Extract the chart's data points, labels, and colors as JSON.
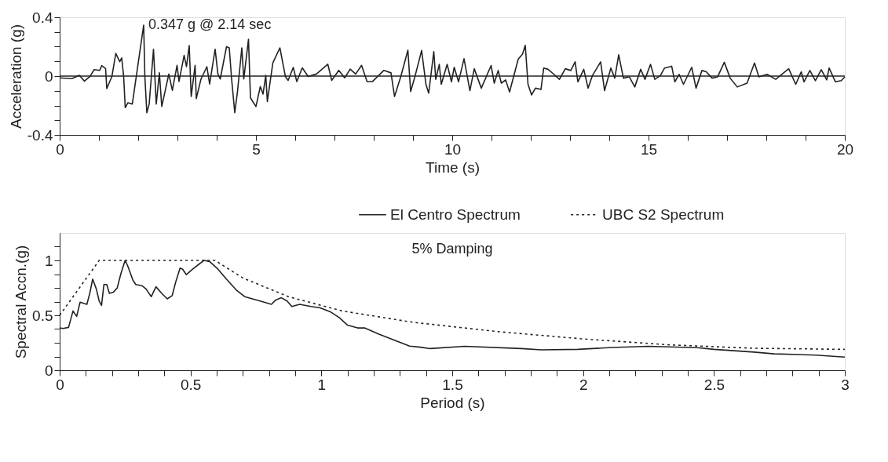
{
  "chart_data": [
    {
      "type": "line",
      "xlabel": "Time (s)",
      "ylabel": "Acceleration (g)",
      "xlim": [
        0,
        20
      ],
      "ylim": [
        -0.4,
        0.4
      ],
      "xticks": [
        0,
        {
          "value": 1,
          "label": null
        },
        {
          "value": 2,
          "label": null
        },
        {
          "value": 3,
          "label": null
        },
        {
          "value": 4,
          "label": null
        },
        5,
        {
          "value": 6,
          "label": null
        },
        {
          "value": 7,
          "label": null
        },
        {
          "value": 8,
          "label": null
        },
        {
          "value": 9,
          "label": null
        },
        10,
        {
          "value": 11,
          "label": null
        },
        {
          "value": 12,
          "label": null
        },
        {
          "value": 13,
          "label": null
        },
        {
          "value": 14,
          "label": null
        },
        15,
        {
          "value": 16,
          "label": null
        },
        {
          "value": 17,
          "label": null
        },
        {
          "value": 18,
          "label": null
        },
        {
          "value": 19,
          "label": null
        },
        20
      ],
      "yticks": [
        -0.4,
        {
          "value": -0.3,
          "label": null
        },
        {
          "value": -0.2,
          "label": null
        },
        {
          "value": -0.1,
          "label": null
        },
        0,
        {
          "value": 0.1,
          "label": null
        },
        {
          "value": 0.2,
          "label": null
        },
        {
          "value": 0.3,
          "label": null
        },
        0.4
      ],
      "grid": false,
      "legend": false,
      "marker": "none",
      "ref_lines": [
        {
          "axis": "y",
          "value": 0,
          "label": null,
          "color": "#222222"
        }
      ],
      "annotations": [
        {
          "text": "0.347 g @ 2.14 sec",
          "x": 2.14,
          "y": 0.347
        }
      ],
      "series": [
        {
          "color": "#222222",
          "line_style": "solid",
          "x": [
            0,
            0.31,
            0.5,
            0.63,
            0.77,
            0.88,
            1.02,
            1.07,
            1.17,
            1.2,
            1.33,
            1.43,
            1.53,
            1.58,
            1.63,
            1.67,
            1.74,
            1.85,
            2.14,
            2.17,
            2.22,
            2.28,
            2.39,
            2.46,
            2.54,
            2.6,
            2.78,
            2.87,
            2.99,
            3.04,
            3.17,
            3.23,
            3.3,
            3.35,
            3.45,
            3.48,
            3.6,
            3.75,
            3.82,
            3.96,
            4.03,
            4.09,
            4.25,
            4.32,
            4.38,
            4.46,
            4.53,
            4.64,
            4.69,
            4.81,
            4.86,
            5.0,
            5.11,
            5.18,
            5.25,
            5.29,
            5.43,
            5.61,
            5.75,
            5.82,
            5.95,
            6.04,
            6.18,
            6.33,
            6.54,
            6.83,
            6.93,
            7.11,
            7.26,
            7.4,
            7.54,
            7.69,
            7.83,
            7.97,
            8.26,
            8.44,
            8.53,
            8.69,
            8.87,
            8.94,
            9.05,
            9.22,
            9.33,
            9.4,
            9.53,
            9.58,
            9.67,
            9.72,
            9.87,
            9.98,
            10.05,
            10.16,
            10.3,
            10.45,
            10.56,
            10.74,
            10.99,
            11.07,
            11.17,
            11.25,
            11.36,
            11.46,
            11.68,
            11.79,
            11.86,
            11.93,
            12.02,
            12.12,
            12.26,
            12.33,
            12.44,
            12.59,
            12.73,
            12.88,
            13.02,
            13.13,
            13.2,
            13.35,
            13.46,
            13.57,
            13.78,
            13.88,
            14.04,
            14.14,
            14.24,
            14.36,
            14.51,
            14.65,
            14.8,
            14.91,
            15.05,
            15.16,
            15.3,
            15.41,
            15.59,
            15.67,
            15.78,
            15.89,
            16.1,
            16.21,
            16.36,
            16.47,
            16.62,
            16.76,
            16.93,
            17.08,
            17.26,
            17.51,
            17.7,
            17.81,
            18.02,
            18.24,
            18.57,
            18.75,
            18.89,
            18.96,
            19.11,
            19.25,
            19.4,
            19.54,
            19.6,
            19.76,
            19.91,
            20
          ],
          "values": [
            -0.012,
            -0.017,
            0.005,
            -0.034,
            -0.003,
            0.044,
            0.039,
            0.071,
            0.051,
            -0.085,
            -0.003,
            0.154,
            0.098,
            0.124,
            -0.003,
            -0.215,
            -0.181,
            -0.19,
            0.347,
            -0.003,
            -0.249,
            -0.19,
            0.183,
            -0.19,
            0.022,
            -0.207,
            0.014,
            -0.097,
            0.073,
            -0.037,
            0.141,
            0.064,
            0.208,
            -0.139,
            0.073,
            -0.153,
            -0.02,
            0.064,
            -0.054,
            0.183,
            0.014,
            -0.02,
            0.2,
            0.192,
            -0.02,
            -0.249,
            -0.105,
            0.192,
            -0.02,
            0.251,
            -0.148,
            -0.207,
            -0.071,
            -0.122,
            0.005,
            -0.173,
            0.09,
            0.192,
            -0.003,
            -0.029,
            0.059,
            -0.037,
            0.056,
            -0.003,
            0.014,
            0.081,
            -0.029,
            0.039,
            -0.012,
            0.047,
            0.014,
            0.073,
            -0.037,
            -0.037,
            0.039,
            0.022,
            -0.139,
            -0.003,
            0.176,
            -0.105,
            -0.003,
            0.174,
            -0.056,
            -0.116,
            0.166,
            -0.022,
            0.08,
            -0.056,
            0.08,
            -0.039,
            0.06,
            -0.039,
            0.118,
            -0.099,
            0.05,
            -0.082,
            0.072,
            -0.048,
            0.038,
            -0.048,
            -0.026,
            -0.108,
            0.115,
            0.149,
            0.209,
            -0.056,
            -0.128,
            -0.082,
            -0.091,
            0.055,
            0.046,
            0.012,
            -0.022,
            0.05,
            0.038,
            0.097,
            -0.039,
            0.046,
            -0.082,
            0.003,
            0.097,
            -0.099,
            0.055,
            -0.014,
            0.145,
            -0.014,
            -0.005,
            -0.074,
            0.046,
            -0.022,
            0.08,
            -0.022,
            0.003,
            0.055,
            0.067,
            -0.039,
            0.012,
            -0.056,
            0.06,
            -0.082,
            0.038,
            0.029,
            -0.014,
            -0.005,
            0.094,
            -0.014,
            -0.074,
            -0.048,
            0.089,
            -0.005,
            0.012,
            -0.022,
            0.05,
            -0.056,
            0.029,
            -0.039,
            0.038,
            -0.031,
            0.043,
            -0.026,
            0.055,
            -0.039,
            -0.031,
            -0.005
          ]
        }
      ]
    },
    {
      "type": "line",
      "xlabel": "Period (s)",
      "ylabel": "Spectral Accn.(g)",
      "xlim": [
        0,
        3
      ],
      "ylim": [
        0,
        1.25
      ],
      "xticks": [
        0,
        {
          "value": 0.1,
          "label": null
        },
        {
          "value": 0.2,
          "label": null
        },
        {
          "value": 0.3,
          "label": null
        },
        {
          "value": 0.4,
          "label": null
        },
        0.5,
        {
          "value": 0.6,
          "label": null
        },
        {
          "value": 0.7,
          "label": null
        },
        {
          "value": 0.8,
          "label": null
        },
        {
          "value": 0.9,
          "label": null
        },
        1,
        {
          "value": 1.1,
          "label": null
        },
        {
          "value": 1.2,
          "label": null
        },
        {
          "value": 1.3,
          "label": null
        },
        {
          "value": 1.4,
          "label": null
        },
        1.5,
        {
          "value": 1.6,
          "label": null
        },
        {
          "value": 1.7,
          "label": null
        },
        {
          "value": 1.8,
          "label": null
        },
        {
          "value": 1.9,
          "label": null
        },
        2,
        {
          "value": 2.1,
          "label": null
        },
        {
          "value": 2.2,
          "label": null
        },
        {
          "value": 2.3,
          "label": null
        },
        {
          "value": 2.4,
          "label": null
        },
        2.5,
        {
          "value": 2.6,
          "label": null
        },
        {
          "value": 2.7,
          "label": null
        },
        {
          "value": 2.8,
          "label": null
        },
        {
          "value": 2.9,
          "label": null
        },
        3
      ],
      "yticks": [
        0,
        {
          "value": 0.125,
          "label": null
        },
        {
          "value": 0.25,
          "label": null
        },
        {
          "value": 0.375,
          "label": null
        },
        0.5,
        {
          "value": 0.625,
          "label": null
        },
        {
          "value": 0.75,
          "label": null
        },
        {
          "value": 0.875,
          "label": null
        },
        1,
        {
          "value": 1.125,
          "label": null
        }
      ],
      "grid": false,
      "legend": "top right",
      "marker": "none",
      "annotations": [
        "5% Damping"
      ],
      "series": [
        {
          "name": "El Centro Spectrum",
          "color": "#222222",
          "line_style": "solid",
          "x": [
            0,
            0.013,
            0.034,
            0.051,
            0.065,
            0.078,
            0.09,
            0.104,
            0.115,
            0.126,
            0.14,
            0.151,
            0.16,
            0.169,
            0.18,
            0.19,
            0.205,
            0.22,
            0.234,
            0.25,
            0.26,
            0.28,
            0.291,
            0.314,
            0.33,
            0.35,
            0.368,
            0.39,
            0.411,
            0.43,
            0.443,
            0.46,
            0.47,
            0.484,
            0.508,
            0.551,
            0.573,
            0.605,
            0.637,
            0.675,
            0.707,
            0.766,
            0.809,
            0.826,
            0.847,
            0.869,
            0.887,
            0.917,
            0.96,
            0.993,
            1.036,
            1.068,
            1.1,
            1.138,
            1.165,
            1.218,
            1.283,
            1.337,
            1.378,
            1.416,
            1.547,
            1.764,
            1.84,
            1.98,
            2.11,
            2.25,
            2.436,
            2.5,
            2.653,
            2.73,
            2.89,
            3
          ],
          "values": [
            0.385,
            0.38,
            0.39,
            0.54,
            0.49,
            0.62,
            0.61,
            0.6,
            0.7,
            0.83,
            0.74,
            0.63,
            0.59,
            0.78,
            0.78,
            0.7,
            0.71,
            0.75,
            0.88,
            1.0,
            0.95,
            0.82,
            0.78,
            0.77,
            0.74,
            0.67,
            0.76,
            0.7,
            0.65,
            0.68,
            0.8,
            0.93,
            0.92,
            0.87,
            0.92,
            1.0,
            0.99,
            0.92,
            0.83,
            0.73,
            0.67,
            0.63,
            0.6,
            0.64,
            0.66,
            0.63,
            0.58,
            0.6,
            0.58,
            0.57,
            0.53,
            0.48,
            0.41,
            0.385,
            0.385,
            0.33,
            0.27,
            0.22,
            0.21,
            0.197,
            0.218,
            0.197,
            0.186,
            0.19,
            0.207,
            0.218,
            0.205,
            0.19,
            0.165,
            0.149,
            0.138,
            0.12
          ]
        },
        {
          "name": "UBC S2 Spectrum",
          "color": "#222222",
          "line_style": "dotted",
          "x": [
            0,
            0.151,
            0.594,
            0.7,
            0.874,
            1.079,
            1.351,
            1.677,
            2.0,
            2.33,
            2.65,
            3
          ],
          "values": [
            0.5,
            1.0,
            1.0,
            0.84,
            0.67,
            0.54,
            0.436,
            0.351,
            0.285,
            0.231,
            0.2,
            0.19
          ]
        }
      ]
    }
  ]
}
